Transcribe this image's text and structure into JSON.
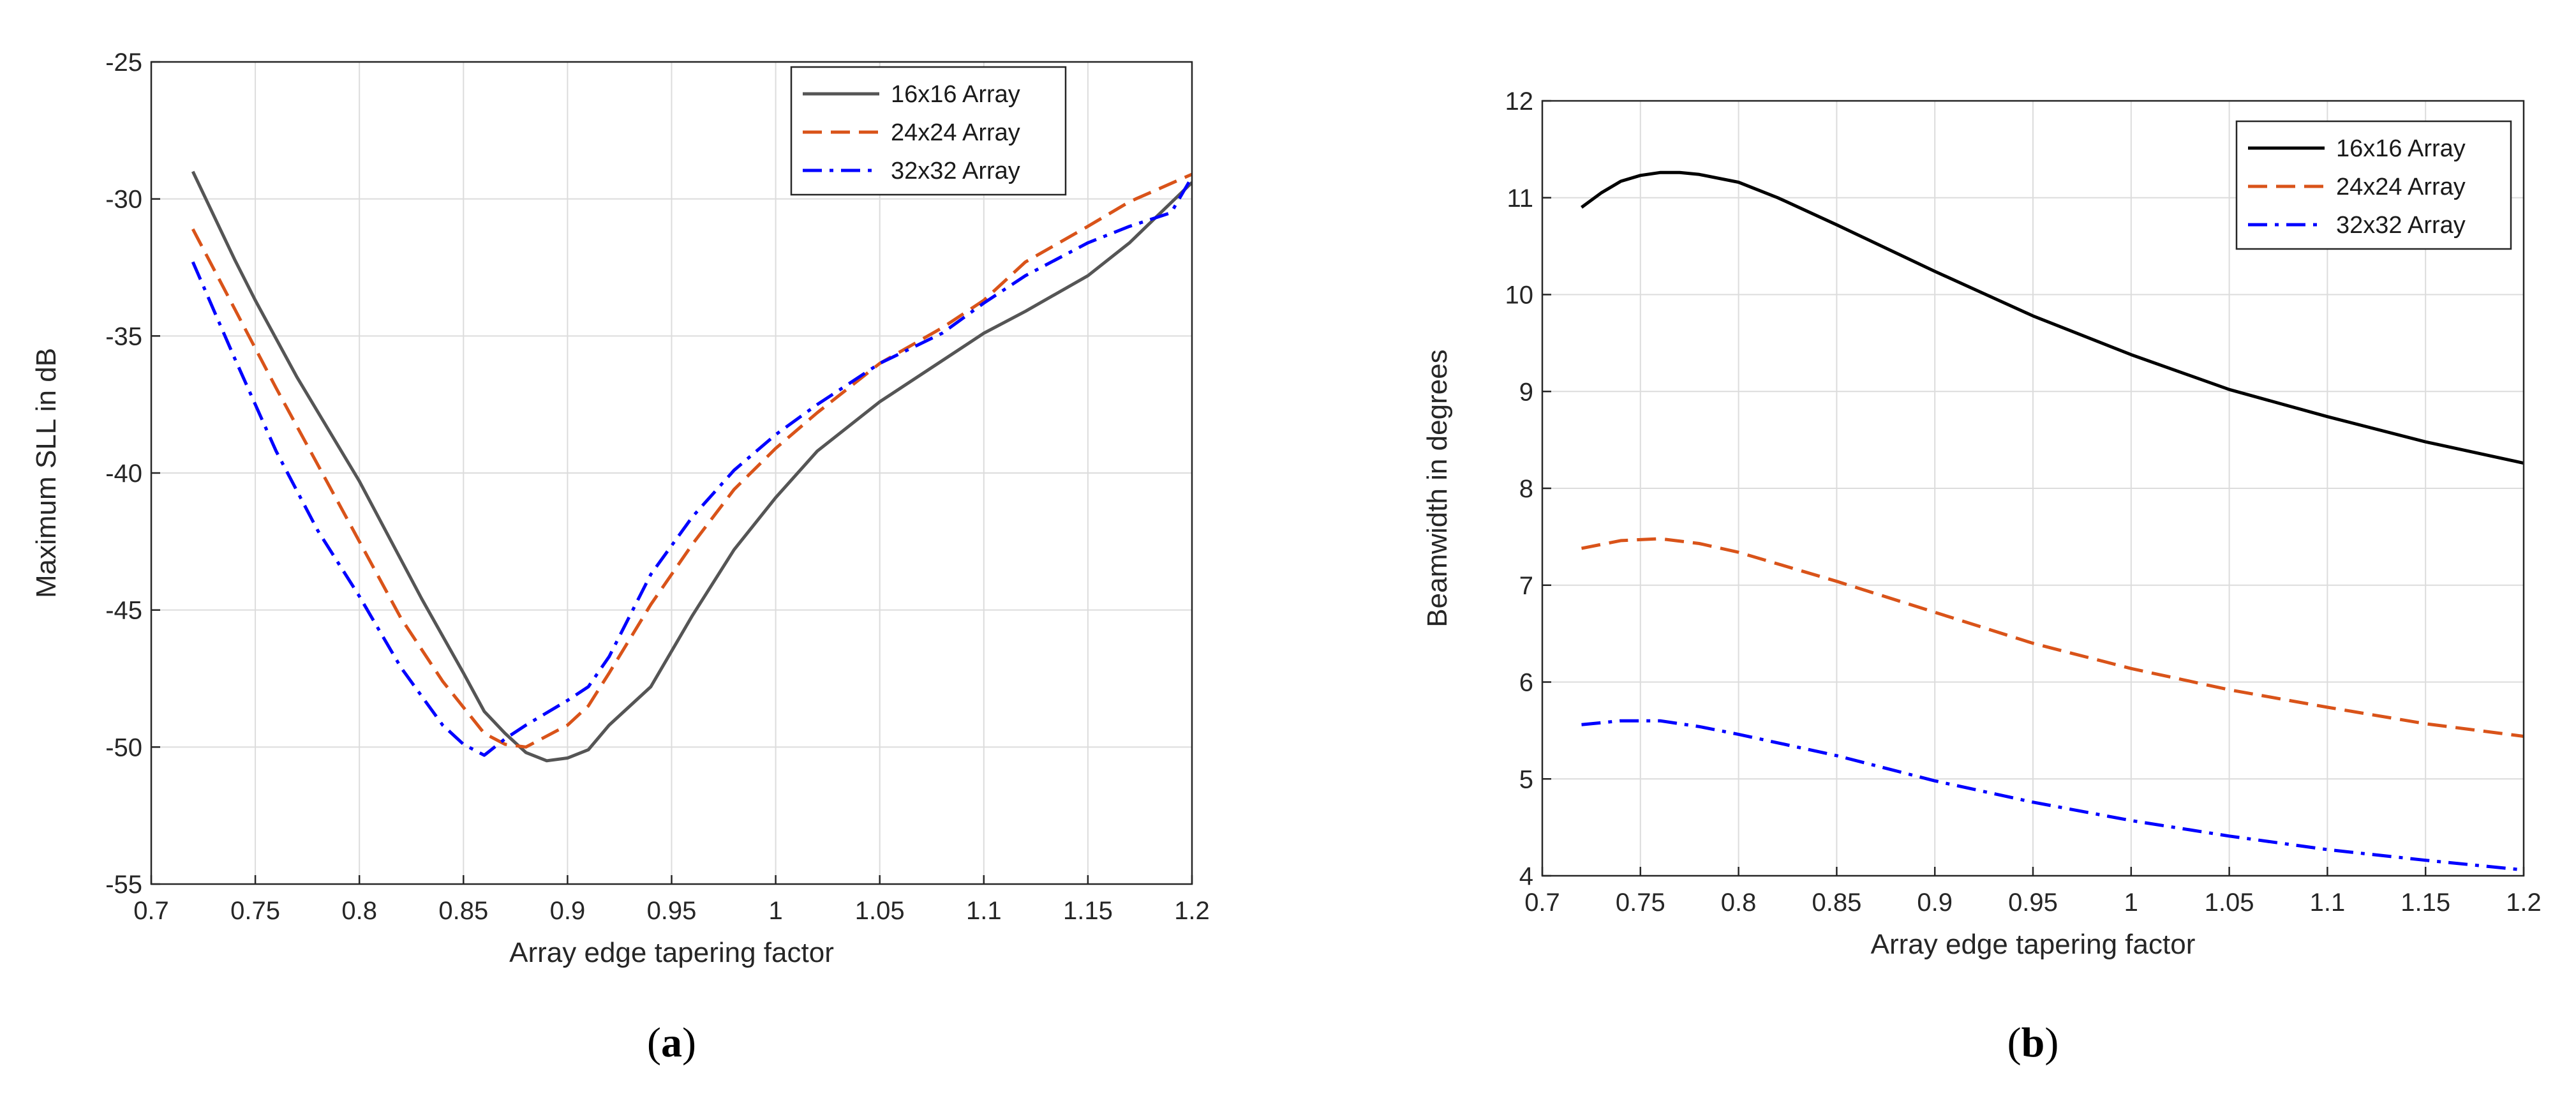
{
  "chart_data": [
    {
      "type": "line",
      "panel": "a",
      "caption": "(a)",
      "title": "",
      "xlabel": "Array edge tapering factor",
      "ylabel": "Maximum SLL in dB",
      "xlim": [
        0.7,
        1.2
      ],
      "ylim": [
        -55,
        -25
      ],
      "xticks": [
        "0.7",
        "0.75",
        "0.8",
        "0.85",
        "0.9",
        "0.95",
        "1",
        "1.05",
        "1.1",
        "1.15",
        "1.2"
      ],
      "yticks": [
        "-55",
        "-50",
        "-45",
        "-40",
        "-35",
        "-30",
        "-25"
      ],
      "grid": true,
      "legend_position": "top-right",
      "series": [
        {
          "name": "16x16 Array",
          "color": "#555555",
          "dash": "solid",
          "x": [
            0.72,
            0.74,
            0.75,
            0.77,
            0.8,
            0.83,
            0.85,
            0.86,
            0.87,
            0.88,
            0.89,
            0.9,
            0.91,
            0.92,
            0.94,
            0.96,
            0.98,
            1.0,
            1.02,
            1.05,
            1.08,
            1.1,
            1.12,
            1.15,
            1.17,
            1.2
          ],
          "y": [
            -29.0,
            -32.2,
            -33.7,
            -36.5,
            -40.3,
            -44.6,
            -47.3,
            -48.7,
            -49.5,
            -50.2,
            -50.5,
            -50.4,
            -50.1,
            -49.2,
            -47.8,
            -45.2,
            -42.8,
            -40.9,
            -39.2,
            -37.4,
            -35.9,
            -34.9,
            -34.1,
            -32.8,
            -31.6,
            -29.4
          ]
        },
        {
          "name": "24x24 Array",
          "color": "#d95319",
          "dash": "dashed",
          "x": [
            0.72,
            0.74,
            0.76,
            0.78,
            0.8,
            0.82,
            0.84,
            0.86,
            0.87,
            0.88,
            0.9,
            0.91,
            0.92,
            0.94,
            0.96,
            0.98,
            1.0,
            1.02,
            1.05,
            1.08,
            1.1,
            1.12,
            1.15,
            1.17,
            1.2
          ],
          "y": [
            -31.1,
            -34.0,
            -36.9,
            -39.7,
            -42.5,
            -45.3,
            -47.6,
            -49.5,
            -49.9,
            -50.0,
            -49.2,
            -48.5,
            -47.3,
            -44.8,
            -42.6,
            -40.6,
            -39.1,
            -37.8,
            -36.0,
            -34.7,
            -33.7,
            -32.3,
            -31.0,
            -30.1,
            -29.1
          ]
        },
        {
          "name": "32x32 Array",
          "color": "#0000ff",
          "dash": "dashdot",
          "x": [
            0.72,
            0.74,
            0.76,
            0.78,
            0.8,
            0.82,
            0.84,
            0.85,
            0.86,
            0.87,
            0.88,
            0.9,
            0.91,
            0.92,
            0.94,
            0.96,
            0.98,
            1.0,
            1.02,
            1.05,
            1.08,
            1.1,
            1.12,
            1.15,
            1.17,
            1.19,
            1.2
          ],
          "y": [
            -32.3,
            -35.8,
            -39.2,
            -42.1,
            -44.5,
            -47.1,
            -49.2,
            -49.9,
            -50.3,
            -49.7,
            -49.2,
            -48.3,
            -47.8,
            -46.7,
            -43.7,
            -41.6,
            -39.9,
            -38.6,
            -37.5,
            -36.0,
            -34.9,
            -33.8,
            -32.8,
            -31.6,
            -31.0,
            -30.5,
            -29.2
          ]
        }
      ]
    },
    {
      "type": "line",
      "panel": "b",
      "caption": "(b)",
      "title": "",
      "xlabel": "Array edge tapering factor",
      "ylabel": "Beamwidth in degrees",
      "xlim": [
        0.7,
        1.2
      ],
      "ylim": [
        4,
        12
      ],
      "xticks": [
        "0.7",
        "0.75",
        "0.8",
        "0.85",
        "0.9",
        "0.95",
        "1",
        "1.05",
        "1.1",
        "1.15",
        "1.2"
      ],
      "yticks": [
        "4",
        "5",
        "6",
        "7",
        "8",
        "9",
        "10",
        "11",
        "12"
      ],
      "grid": true,
      "legend_position": "top-right",
      "series": [
        {
          "name": "16x16 Array",
          "color": "#000000",
          "dash": "solid",
          "x": [
            0.72,
            0.73,
            0.74,
            0.75,
            0.76,
            0.77,
            0.78,
            0.8,
            0.82,
            0.85,
            0.9,
            0.95,
            1.0,
            1.05,
            1.1,
            1.15,
            1.2
          ],
          "y": [
            10.9,
            11.05,
            11.17,
            11.23,
            11.26,
            11.26,
            11.24,
            11.16,
            11.0,
            10.72,
            10.24,
            9.78,
            9.38,
            9.02,
            8.74,
            8.48,
            8.26
          ]
        },
        {
          "name": "24x24 Array",
          "color": "#d95319",
          "dash": "dashed",
          "x": [
            0.72,
            0.74,
            0.76,
            0.78,
            0.8,
            0.85,
            0.9,
            0.95,
            1.0,
            1.05,
            1.1,
            1.15,
            1.2
          ],
          "y": [
            7.38,
            7.46,
            7.48,
            7.43,
            7.34,
            7.04,
            6.72,
            6.4,
            6.14,
            5.92,
            5.74,
            5.57,
            5.44
          ]
        },
        {
          "name": "32x32 Array",
          "color": "#0000ff",
          "dash": "dashdot",
          "x": [
            0.72,
            0.74,
            0.76,
            0.78,
            0.8,
            0.85,
            0.9,
            0.95,
            1.0,
            1.05,
            1.1,
            1.15,
            1.2
          ],
          "y": [
            5.56,
            5.6,
            5.6,
            5.54,
            5.46,
            5.24,
            4.98,
            4.76,
            4.57,
            4.41,
            4.27,
            4.16,
            4.06
          ]
        }
      ]
    }
  ]
}
